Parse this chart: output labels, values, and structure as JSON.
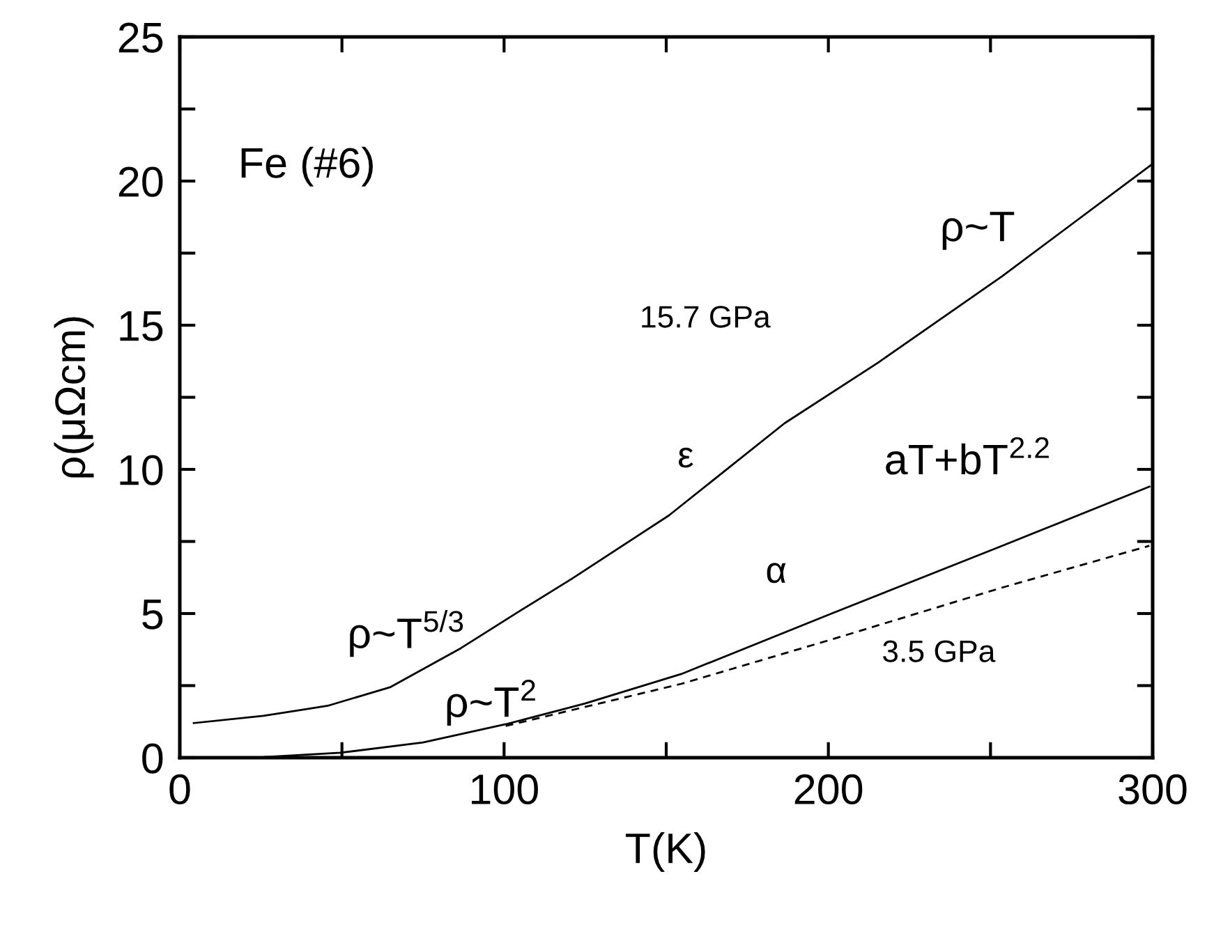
{
  "chart_data": {
    "type": "line",
    "xlabel": "T(K)",
    "ylabel": "ρ(μΩcm)",
    "xlim": [
      0,
      300
    ],
    "ylim": [
      0,
      25
    ],
    "xticks": [
      0,
      {
        "value": 50,
        "label": null
      },
      100,
      {
        "value": 150,
        "label": null
      },
      200,
      {
        "value": 250,
        "label": null
      },
      300
    ],
    "yticks": [
      0,
      {
        "value": 2.5,
        "label": null
      },
      5,
      {
        "value": 7.5,
        "label": null
      },
      10,
      {
        "value": 12.5,
        "label": null
      },
      15,
      {
        "value": 17.5,
        "label": null
      },
      20,
      {
        "value": 22.5,
        "label": null
      },
      25
    ],
    "grid": false,
    "legend": false,
    "marker": "none",
    "series": [
      {
        "color": "#000000",
        "line_style": "solid",
        "x": [
          4.3,
          25.8,
          45.6,
          65,
          86.7,
          105,
          120.8,
          150.8,
          186.5,
          215.3,
          253.6,
          300
        ],
        "values": [
          1.2,
          1.45,
          1.8,
          2.45,
          3.8,
          5.1,
          6.2,
          8.4,
          11.6,
          13.7,
          16.7,
          20.6
        ]
      },
      {
        "color": "#000000",
        "line_style": "solid",
        "x": [
          0,
          25.8,
          49.5,
          75,
          100.5,
          125,
          154.6,
          201,
          253.6,
          299
        ],
        "values": [
          0,
          0.02,
          0.17,
          0.53,
          1.16,
          1.88,
          2.9,
          5.0,
          7.35,
          9.4
        ]
      },
      {
        "color": "#000000",
        "line_style": "dashed",
        "x": [
          100.5,
          154.6,
          201,
          253.6,
          299
        ],
        "values": [
          1.1,
          2.56,
          4.1,
          5.9,
          7.35
        ]
      }
    ],
    "annotations": [
      "Fe (#6)",
      "ρ~T",
      "15.7 GPa",
      "ε",
      "aT+bT$^{2.2}$",
      "α",
      "3.5 GPa",
      "ρ~T$^{5/3}$",
      "ρ~T$^{2}$"
    ]
  }
}
